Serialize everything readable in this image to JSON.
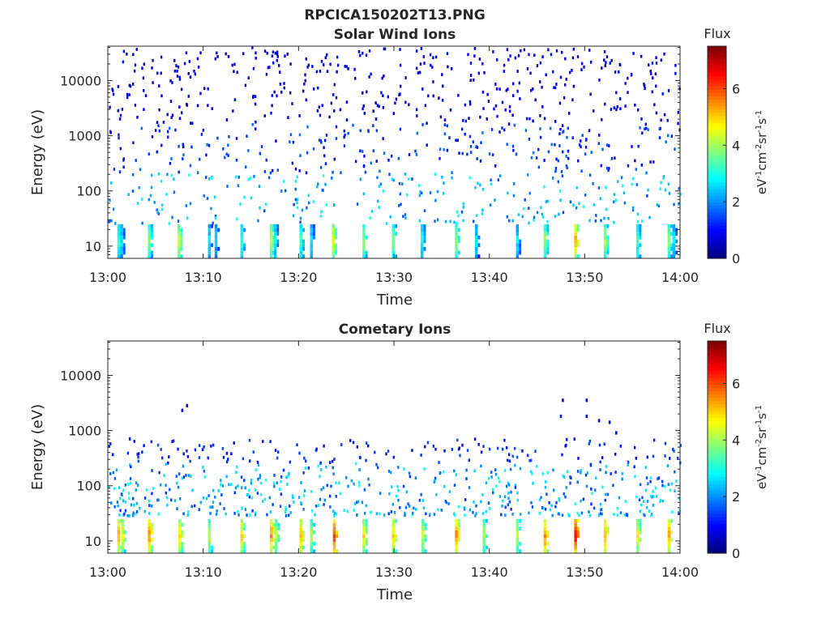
{
  "figure_title": "RPCICA150202T13.PNG",
  "colorbar_label": "Flux",
  "colorbar_units": "eV^-1cm^-2sr^-1s^-1",
  "chart_data": [
    {
      "type": "heatmap",
      "title": "Solar Wind Ions",
      "xlabel": "Time",
      "ylabel": "Energy (eV)",
      "x_ticks": [
        "13:00",
        "13:10",
        "13:20",
        "13:30",
        "13:40",
        "13:50",
        "14:00"
      ],
      "xlim_minutes": [
        0,
        60
      ],
      "y_scale": "log",
      "y_ticks": [
        10,
        100,
        1000,
        10000
      ],
      "y_tick_labels": [
        "10",
        "100",
        "1000",
        "10000"
      ],
      "ylim": [
        6,
        42000
      ],
      "colorbar": {
        "min": 0,
        "max": 7.5,
        "ticks": [
          0,
          2,
          4,
          6
        ],
        "tick_labels": [
          "0",
          "2",
          "4",
          "6"
        ]
      },
      "low_energy_bursts": [
        {
          "t": 1.0,
          "flux": 3.5
        },
        {
          "t": 1.3,
          "flux": 3.0
        },
        {
          "t": 4.2,
          "flux": 4.2
        },
        {
          "t": 7.3,
          "flux": 4.8
        },
        {
          "t": 10.5,
          "flux": 3.0
        },
        {
          "t": 11.2,
          "flux": 2.8
        },
        {
          "t": 13.9,
          "flux": 3.4
        },
        {
          "t": 17.0,
          "flux": 4.6
        },
        {
          "t": 17.4,
          "flux": 3.2
        },
        {
          "t": 20.1,
          "flux": 3.6
        },
        {
          "t": 21.2,
          "flux": 3.0
        },
        {
          "t": 23.5,
          "flux": 4.9
        },
        {
          "t": 26.7,
          "flux": 4.2
        },
        {
          "t": 29.8,
          "flux": 4.0
        },
        {
          "t": 32.8,
          "flux": 3.3
        },
        {
          "t": 36.4,
          "flux": 4.2
        },
        {
          "t": 38.5,
          "flux": 3.0
        },
        {
          "t": 42.8,
          "flux": 3.0
        },
        {
          "t": 45.7,
          "flux": 4.3
        },
        {
          "t": 48.9,
          "flux": 5.6
        },
        {
          "t": 52.0,
          "flux": 4.3
        },
        {
          "t": 55.4,
          "flux": 3.5
        },
        {
          "t": 58.7,
          "flux": 4.1
        },
        {
          "t": 59.2,
          "flux": 3.0
        }
      ]
    },
    {
      "type": "heatmap",
      "title": "Cometary Ions",
      "xlabel": "Time",
      "ylabel": "Energy (eV)",
      "x_ticks": [
        "13:00",
        "13:10",
        "13:20",
        "13:30",
        "13:40",
        "13:50",
        "14:00"
      ],
      "xlim_minutes": [
        0,
        60
      ],
      "y_scale": "log",
      "y_ticks": [
        10,
        100,
        1000,
        10000
      ],
      "y_tick_labels": [
        "10",
        "100",
        "1000",
        "10000"
      ],
      "ylim": [
        6,
        42000
      ],
      "colorbar": {
        "min": 0,
        "max": 7.5,
        "ticks": [
          0,
          2,
          4,
          6
        ],
        "tick_labels": [
          "0",
          "2",
          "4",
          "6"
        ]
      },
      "low_energy_bursts": [
        {
          "t": 1.0,
          "flux": 5.6
        },
        {
          "t": 1.4,
          "flux": 4.8
        },
        {
          "t": 4.2,
          "flux": 5.8
        },
        {
          "t": 7.4,
          "flux": 5.2
        },
        {
          "t": 10.5,
          "flux": 4.5
        },
        {
          "t": 13.9,
          "flux": 5.3
        },
        {
          "t": 17.0,
          "flux": 5.8
        },
        {
          "t": 17.5,
          "flux": 4.6
        },
        {
          "t": 20.1,
          "flux": 5.4
        },
        {
          "t": 21.2,
          "flux": 4.4
        },
        {
          "t": 23.6,
          "flux": 6.4
        },
        {
          "t": 26.7,
          "flux": 5.2
        },
        {
          "t": 29.8,
          "flux": 5.2
        },
        {
          "t": 32.9,
          "flux": 4.6
        },
        {
          "t": 36.4,
          "flux": 6.0
        },
        {
          "t": 39.3,
          "flux": 4.4
        },
        {
          "t": 42.8,
          "flux": 4.5
        },
        {
          "t": 45.7,
          "flux": 5.9
        },
        {
          "t": 48.9,
          "flux": 6.9
        },
        {
          "t": 52.0,
          "flux": 5.6
        },
        {
          "t": 55.4,
          "flux": 5.0
        },
        {
          "t": 58.7,
          "flux": 5.7
        }
      ],
      "isolated_high_energy": [
        {
          "t": 7.7,
          "e": 2300,
          "flux": 1.0
        },
        {
          "t": 8.2,
          "e": 2800,
          "flux": 1.0
        },
        {
          "t": 47.4,
          "e": 1800,
          "flux": 1.2
        },
        {
          "t": 47.6,
          "e": 3500,
          "flux": 0.9
        },
        {
          "t": 50.1,
          "e": 3500,
          "flux": 0.9
        },
        {
          "t": 50.1,
          "e": 1800,
          "flux": 1.0
        },
        {
          "t": 51.4,
          "e": 1500,
          "flux": 1.0
        },
        {
          "t": 52.5,
          "e": 1400,
          "flux": 0.9
        },
        {
          "t": 53.2,
          "e": 900,
          "flux": 0.9
        },
        {
          "t": 2.2,
          "e": 700,
          "flux": 1.2
        }
      ]
    }
  ]
}
